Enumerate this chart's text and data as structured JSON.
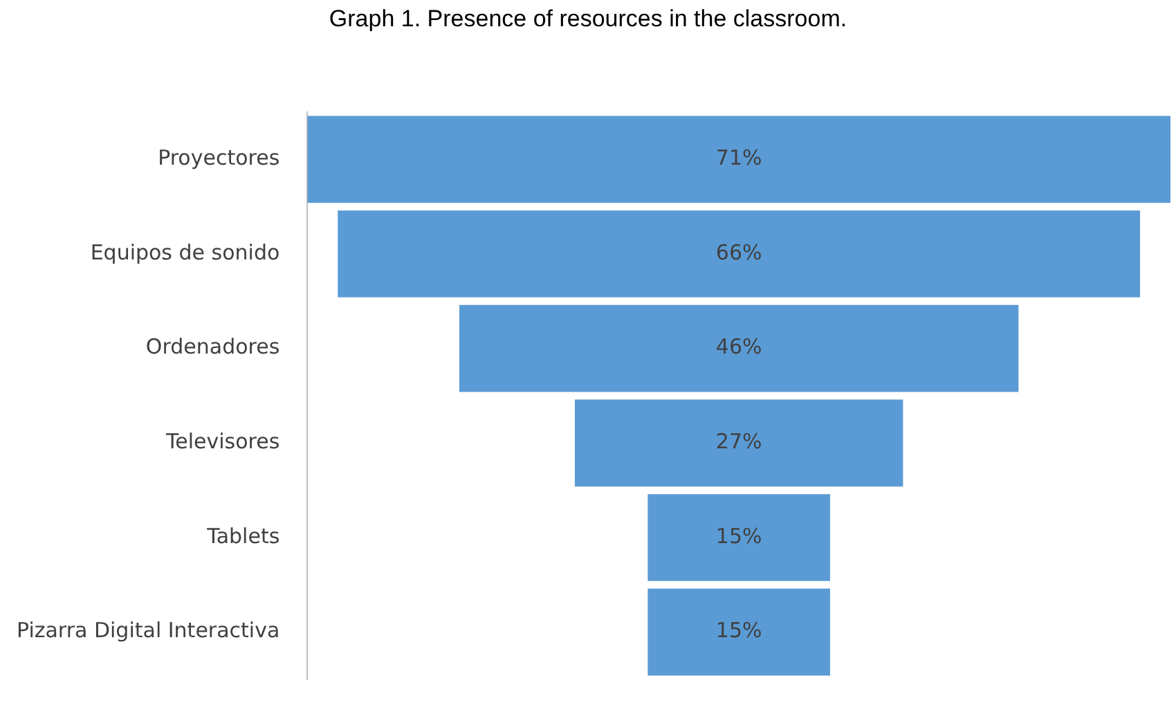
{
  "chart_data": {
    "type": "other",
    "title": "Graph 1. Presence of resources in the classroom.",
    "categories": [
      "Proyectores",
      "Equipos de sonido",
      "Ordenadores",
      "Televisores",
      "Tablets",
      "Pizarra Digital Interactiva"
    ],
    "values": [
      71,
      66,
      46,
      27,
      15,
      15
    ],
    "value_labels": [
      "71%",
      "66%",
      "46%",
      "27%",
      "15%",
      "15%"
    ],
    "color": "#5b9bd5"
  }
}
